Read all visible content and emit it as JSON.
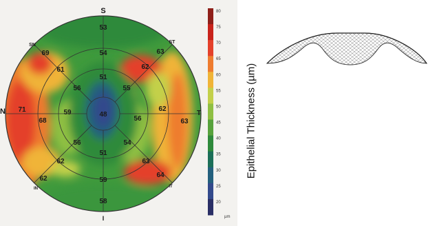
{
  "map": {
    "orientation": {
      "superior": "S",
      "inferior": "I",
      "nasal": "N",
      "temporal": "T",
      "superonasal": "SN",
      "superotemporal": "ST",
      "inferonasal": "IN",
      "inferotemporal": "IT"
    },
    "center_value": "48",
    "inner_ring": [
      {
        "sector": "superior",
        "value": "51"
      },
      {
        "sector": "superotemporal",
        "value": "55"
      },
      {
        "sector": "temporal",
        "value": "56"
      },
      {
        "sector": "inferotemporal",
        "value": "54"
      },
      {
        "sector": "inferior",
        "value": "51"
      },
      {
        "sector": "inferonasal",
        "value": "56"
      },
      {
        "sector": "nasal",
        "value": "59"
      },
      {
        "sector": "superonasal",
        "value": "56"
      }
    ],
    "middle_ring": [
      {
        "sector": "superior",
        "value": "54"
      },
      {
        "sector": "superotemporal",
        "value": "62"
      },
      {
        "sector": "temporal",
        "value": "62"
      },
      {
        "sector": "inferotemporal",
        "value": "63"
      },
      {
        "sector": "inferior",
        "value": "59"
      },
      {
        "sector": "inferonasal",
        "value": "62"
      },
      {
        "sector": "nasal",
        "value": "68"
      },
      {
        "sector": "superonasal",
        "value": "61"
      }
    ],
    "outer_ring": [
      {
        "sector": "superior",
        "value": "53"
      },
      {
        "sector": "superotemporal",
        "value": "63"
      },
      {
        "sector": "temporal",
        "value": "63"
      },
      {
        "sector": "inferotemporal",
        "value": "64"
      },
      {
        "sector": "inferior",
        "value": "58"
      },
      {
        "sector": "inferonasal",
        "value": "62"
      },
      {
        "sector": "nasal",
        "value": "71"
      },
      {
        "sector": "superonasal",
        "value": "69"
      }
    ]
  },
  "scale": {
    "ticks": [
      {
        "label": "80",
        "color": "#8f1f19"
      },
      {
        "label": "75",
        "color": "#c8231b"
      },
      {
        "label": "70",
        "color": "#e4412a"
      },
      {
        "label": "65",
        "color": "#ee7c2f"
      },
      {
        "label": "60",
        "color": "#f0b437"
      },
      {
        "label": "55",
        "color": "#c3d04a"
      },
      {
        "label": "50",
        "color": "#8fbf43"
      },
      {
        "label": "45",
        "color": "#57a23c"
      },
      {
        "label": "40",
        "color": "#2f8a3b"
      },
      {
        "label": "35",
        "color": "#1c6f58"
      },
      {
        "label": "30",
        "color": "#24607d"
      },
      {
        "label": "25",
        "color": "#334a8c"
      },
      {
        "label": "20",
        "color": "#2a2f66"
      }
    ],
    "unit": "µm"
  },
  "cross_section": {
    "ylabel": "Epithelial Thickness (µm)"
  },
  "colors": {
    "grid_line": "#333333",
    "label_text": "#1a1a1a"
  }
}
